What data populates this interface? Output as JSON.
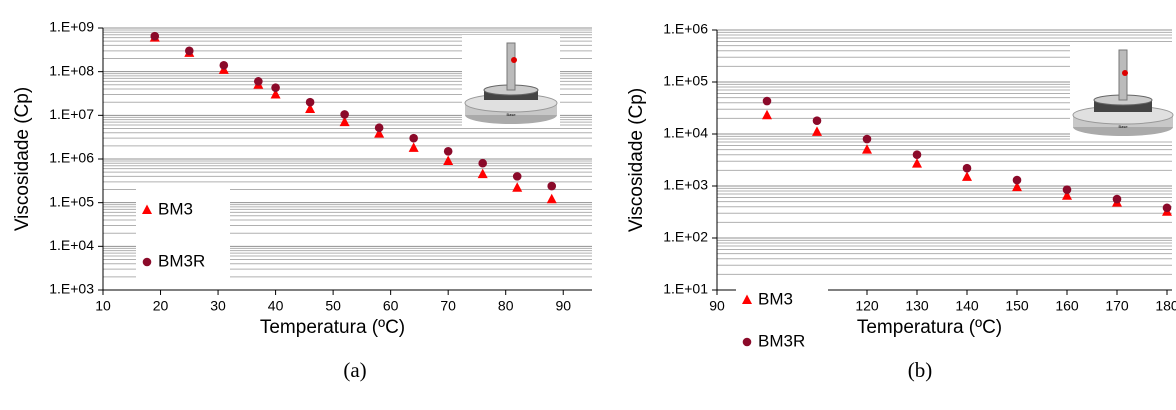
{
  "chart_data": [
    {
      "type": "scatter",
      "caption": "(a)",
      "x_label": "Temperatura (ºC)",
      "y_label": "Viscosidade (Cp)",
      "x": [
        19,
        25,
        31,
        37,
        40,
        46,
        52,
        58,
        64,
        70,
        76,
        82,
        88
      ],
      "series": [
        {
          "name": "BM3",
          "color": "#ff0000",
          "marker": "triangle",
          "values": [
            600000000,
            270000000,
            110000000,
            50000000,
            30000000,
            14000000,
            7000000,
            3800000,
            1800000,
            900000,
            450000,
            220000,
            120000
          ]
        },
        {
          "name": "BM3R",
          "color": "#8b0a2a",
          "marker": "circle",
          "values": [
            650000000,
            300000000,
            140000000,
            60000000,
            43000000,
            20000000,
            10500000,
            5200000,
            3000000,
            1500000,
            800000,
            400000,
            240000
          ]
        }
      ],
      "xlim": [
        10,
        95
      ],
      "xticks": [
        10,
        20,
        30,
        40,
        50,
        60,
        70,
        80,
        90
      ],
      "ylim": [
        1000,
        1000000000
      ],
      "log_y": true,
      "grid": true,
      "yticks": [
        {
          "value": 1000,
          "label": "1.E+03"
        },
        {
          "value": 10000,
          "label": "1.E+04"
        },
        {
          "value": 100000,
          "label": "1.E+05"
        },
        {
          "value": 1000000,
          "label": "1.E+06"
        },
        {
          "value": 10000000,
          "label": "1.E+07"
        },
        {
          "value": 100000000,
          "label": "1.E+08"
        },
        {
          "value": 1000000000,
          "label": "1.E+09"
        }
      ]
    },
    {
      "type": "scatter",
      "caption": "(b)",
      "x_label": "Temperatura (ºC)",
      "y_label": "Viscosidade (Cp)",
      "x": [
        100,
        110,
        120,
        130,
        140,
        150,
        160,
        170,
        180
      ],
      "series": [
        {
          "name": "BM3",
          "color": "#ff0000",
          "marker": "triangle",
          "values": [
            23000,
            11000,
            5000,
            2700,
            1500,
            950,
            650,
            480,
            320
          ]
        },
        {
          "name": "BM3R",
          "color": "#8b0a2a",
          "marker": "circle",
          "values": [
            43000,
            18000,
            8000,
            4000,
            2200,
            1300,
            850,
            560,
            380
          ]
        }
      ],
      "xlim": [
        90,
        181
      ],
      "xticks": [
        90,
        100,
        110,
        120,
        130,
        140,
        150,
        160,
        170,
        180
      ],
      "ylim": [
        10,
        1000000
      ],
      "log_y": true,
      "grid": true,
      "yticks": [
        {
          "value": 10,
          "label": "1.E+01"
        },
        {
          "value": 100,
          "label": "1.E+02"
        },
        {
          "value": 1000,
          "label": "1.E+03"
        },
        {
          "value": 10000,
          "label": "1.E+04"
        },
        {
          "value": 100000,
          "label": "1.E+05"
        },
        {
          "value": 1000000,
          "label": "1.E+06"
        }
      ]
    }
  ]
}
